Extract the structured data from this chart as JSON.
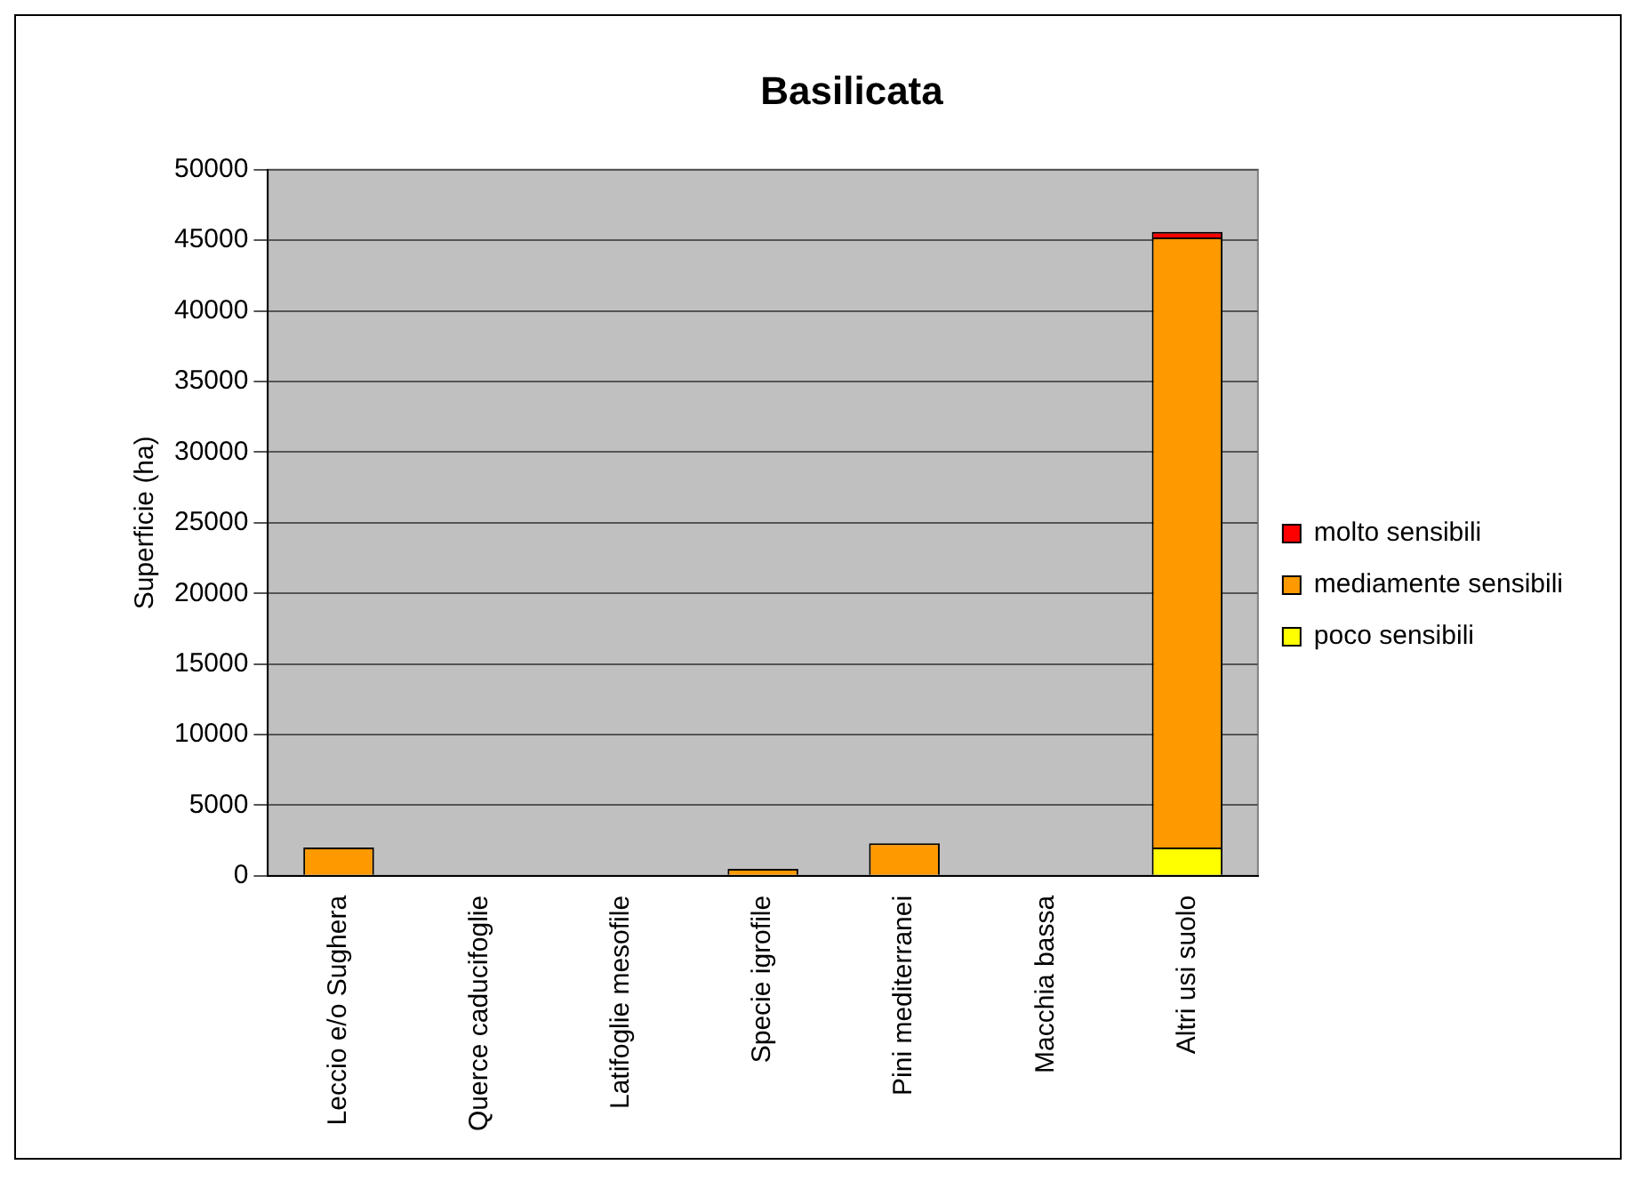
{
  "chart_data": {
    "type": "bar",
    "title": "Basilicata",
    "ylabel": "Superficie (ha)",
    "stacked": true,
    "categories": [
      "Leccio e/o Sughera",
      "Querce caducifoglie",
      "Latifoglie mesofile",
      "Specie igrofile",
      "Pini mediterranei",
      "Macchia bassa",
      "Altri usi suolo"
    ],
    "series": [
      {
        "name": "poco sensibili",
        "color": "#ffff00",
        "values": [
          0,
          null,
          0,
          0,
          0,
          0,
          2000
        ]
      },
      {
        "name": "mediamente sensibili",
        "color": "#ff9900",
        "values": [
          2000,
          0,
          null,
          500,
          2300,
          null,
          43200
        ]
      },
      {
        "name": "molto sensibili",
        "color": "#ff0000",
        "values": [
          0,
          0,
          0,
          0,
          0,
          0,
          400
        ]
      }
    ],
    "ylim": [
      0,
      50000
    ],
    "yticks": [
      0,
      5000,
      10000,
      15000,
      20000,
      25000,
      30000,
      35000,
      40000,
      45000,
      50000
    ],
    "grid": "y",
    "legend": "right"
  }
}
